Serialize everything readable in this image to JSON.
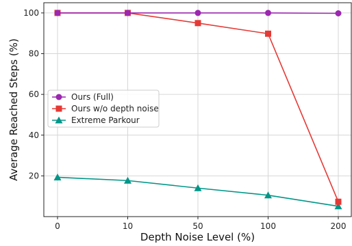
{
  "chart_data": {
    "type": "line",
    "title": "",
    "xlabel": "Depth Noise Level (%)",
    "ylabel": "Average Reached Steps (%)",
    "categories": [
      "0",
      "10",
      "50",
      "100",
      "200"
    ],
    "ylim": [
      0,
      105
    ],
    "yticks": [
      20,
      40,
      60,
      80,
      100
    ],
    "grid": true,
    "legend_position": "center-left",
    "series": [
      {
        "name": "Ours (Full)",
        "color": "#9c27b0",
        "marker": "circle",
        "values": [
          100,
          100,
          100,
          100,
          99.8
        ]
      },
      {
        "name": "Ours w/o depth noise",
        "color": "#e53935",
        "marker": "square",
        "values": [
          100,
          100,
          95,
          89.8,
          7.3
        ]
      },
      {
        "name": "Extreme Parkour",
        "color": "#009688",
        "marker": "triangle",
        "values": [
          19.3,
          17.7,
          14,
          10.5,
          5.1
        ]
      }
    ]
  }
}
